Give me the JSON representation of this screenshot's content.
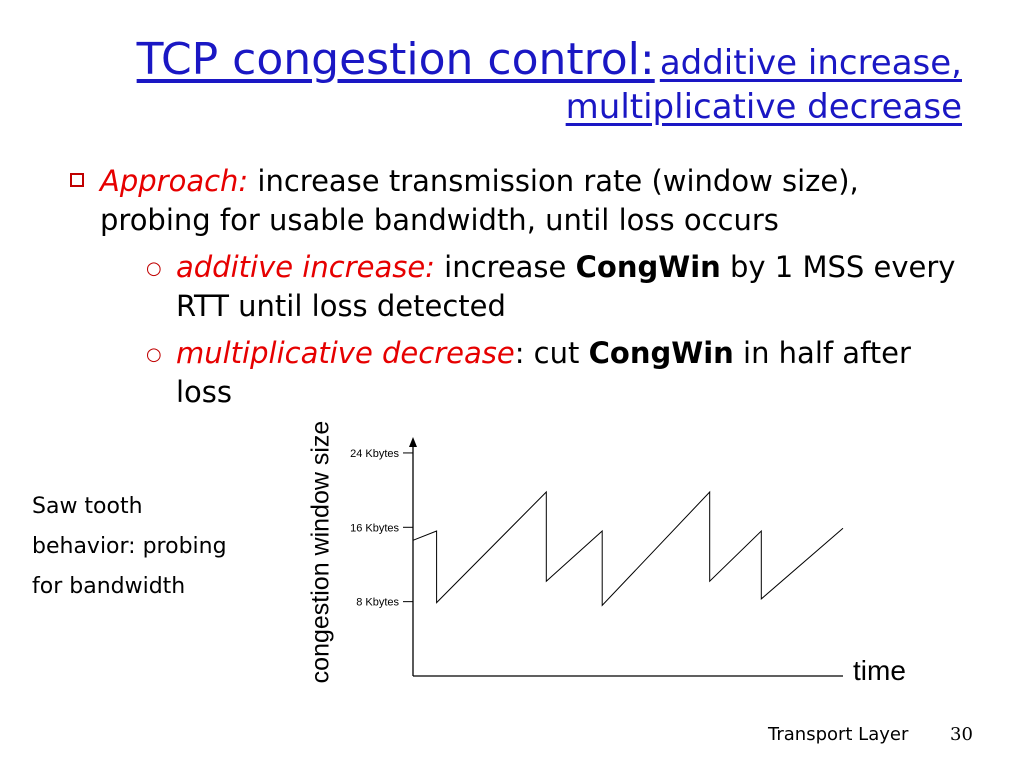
{
  "title": {
    "main": "TCP congestion control:",
    "sub_line1": "additive increase,",
    "sub_line2": "multiplicative decrease"
  },
  "bullet": {
    "lead": "Approach:",
    "text": " increase transmission rate (window size), probing for usable bandwidth, until loss occurs",
    "subitems": [
      {
        "lead": "additive increase:",
        "pre": " increase ",
        "keyword": "CongWin",
        "post": " by 1 MSS every RTT until loss detected"
      },
      {
        "lead": "multiplicative decrease",
        "colon": ":",
        "pre": " cut ",
        "keyword": "CongWin",
        "post": " in half after loss"
      }
    ]
  },
  "note": {
    "line1": "Saw tooth",
    "line2": "behavior: probing",
    "line3": "for bandwidth"
  },
  "footer": {
    "label": "Transport Layer",
    "page": "30"
  },
  "colors": {
    "title": "#1a17c4",
    "accent_red": "#e60000",
    "marker": "#c00000"
  },
  "chart_data": {
    "type": "line",
    "xlabel": "time",
    "ylabel": "congestion window size",
    "yticks": [
      {
        "value": 8,
        "label": "8 Kbytes"
      },
      {
        "value": 16,
        "label": "16 Kbytes"
      },
      {
        "value": 24,
        "label": "24 Kbytes"
      }
    ],
    "ylim": [
      0,
      25.5
    ],
    "xlim": [
      0,
      100
    ],
    "series": [
      {
        "points": [
          [
            0,
            14.6
          ],
          [
            5.5,
            15.6
          ],
          [
            5.5,
            7.9
          ],
          [
            31,
            19.8
          ],
          [
            31,
            10.2
          ],
          [
            44,
            15.6
          ],
          [
            44,
            7.6
          ],
          [
            69,
            19.8
          ],
          [
            69,
            10.2
          ],
          [
            81,
            15.6
          ],
          [
            81,
            8.3
          ],
          [
            100,
            15.9
          ]
        ]
      }
    ]
  }
}
